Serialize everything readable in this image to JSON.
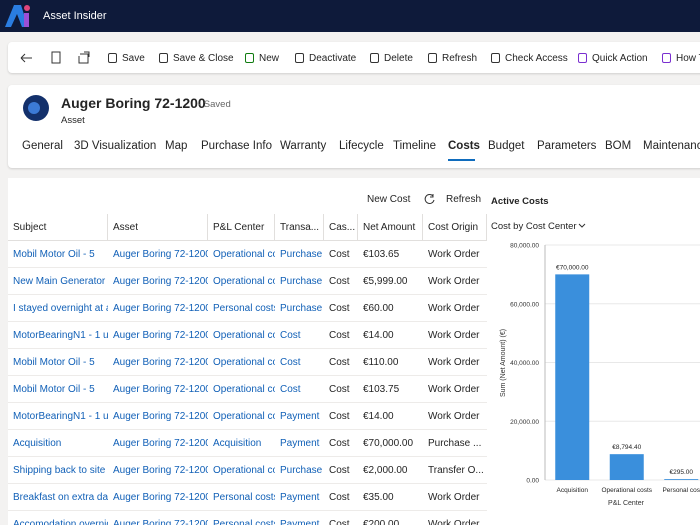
{
  "app": {
    "title": "Asset Insider"
  },
  "toolbar": [
    "Save",
    "Save & Close",
    "New",
    "Deactivate",
    "Delete",
    "Refresh",
    "Check Access",
    "Quick Action",
    "How T"
  ],
  "record": {
    "name": "Auger Boring 72-1200",
    "status": "- Saved",
    "entity": "Asset"
  },
  "tabs": [
    "General",
    "3D Visualization",
    "Map",
    "Purchase Info",
    "Warranty",
    "Lifecycle",
    "Timeline",
    "Costs",
    "Budget",
    "Parameters",
    "BOM",
    "Maintenanc"
  ],
  "grid_commands": [
    "New Cost",
    "Refresh"
  ],
  "table": {
    "columns": [
      "Subject",
      "Asset",
      "P&L Center",
      "Transa...",
      "Cas...",
      "Net Amount",
      "Cost Origin"
    ],
    "rows": [
      [
        "Mobil Motor Oil - 5",
        "Auger Boring 72-1200.",
        "Operational co",
        "Purchase",
        "Cost",
        "€103.65",
        "Work Order"
      ],
      [
        "New Main Generator w",
        "Auger Boring 72-1200.",
        "Operational co",
        "Purchase",
        "Cost",
        "€5,999.00",
        "Work Order"
      ],
      [
        "I stayed overnight at a",
        "Auger Boring 72-1200.",
        "Personal costs.",
        "Purchase",
        "Cost",
        "€60.00",
        "Work Order"
      ],
      [
        "MotorBearingN1 - 1 ur",
        "Auger Boring 72-1200.",
        "Operational co",
        "Cost",
        "Cost",
        "€14.00",
        "Work Order"
      ],
      [
        "Mobil Motor Oil - 5",
        "Auger Boring 72-1200.",
        "Operational co",
        "Cost",
        "Cost",
        "€110.00",
        "Work Order"
      ],
      [
        "Mobil Motor Oil - 5",
        "Auger Boring 72-1200.",
        "Operational co",
        "Cost",
        "Cost",
        "€103.75",
        "Work Order"
      ],
      [
        "MotorBearingN1 - 1 ur",
        "Auger Boring 72-1200.",
        "Operational co",
        "Payment",
        "Cost",
        "€14.00",
        "Work Order"
      ],
      [
        "Acquisition",
        "Auger Boring 72-1200.",
        "Acquisition",
        "Payment",
        "Cost",
        "€70,000.00",
        "Purchase ..."
      ],
      [
        "Shipping back to site",
        "Auger Boring 72-1200.",
        "Operational co",
        "Purchase",
        "Cost",
        "€2,000.00",
        "Transfer O..."
      ],
      [
        "Breakfast on extra day.",
        "Auger Boring 72-1200.",
        "Personal costs.",
        "Payment",
        "Cost",
        "€35.00",
        "Work Order"
      ],
      [
        "Accomodation overnig",
        "Auger Boring 72-1200.",
        "Personal costs",
        "Payment",
        "Cost",
        "€200.00",
        "Work Order"
      ]
    ]
  },
  "chart_data": {
    "type": "bar",
    "title": "Active Costs",
    "view": "Cost by Cost Center",
    "y_label": "Sum (Net Amount) (€)",
    "x_label": "P&L Center",
    "categories": [
      "Acquisition",
      "Operational costs",
      "Personal cos"
    ],
    "values": [
      70000,
      8794.4,
      295
    ],
    "value_labels": [
      "€70,000.00",
      "€8,794.40",
      "€295.00"
    ],
    "color": "#3a8fdc",
    "ylim": [
      0,
      80000
    ],
    "yticks": [
      {
        "value": 0,
        "label": "0.00"
      },
      {
        "value": 20000,
        "label": "20,000.00"
      },
      {
        "value": 40000,
        "label": "40,000.00"
      },
      {
        "value": 60000,
        "label": "60,000.00"
      },
      {
        "value": 80000,
        "label": "80,000.00"
      }
    ]
  }
}
